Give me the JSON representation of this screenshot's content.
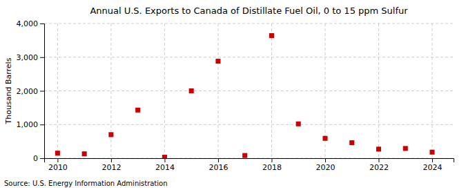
{
  "chart_data": {
    "type": "scatter",
    "title": "Annual U.S. Exports to Canada of Distillate Fuel Oil, 0 to 15 ppm Sulfur",
    "ylabel": "Thousand Barrels",
    "source": "Source: U.S. Energy Information Administration",
    "x": [
      2010,
      2011,
      2012,
      2013,
      2014,
      2015,
      2016,
      2017,
      2018,
      2019,
      2020,
      2021,
      2022,
      2023,
      2024
    ],
    "values": [
      150,
      130,
      700,
      1430,
      30,
      2000,
      2880,
      80,
      3640,
      1020,
      590,
      460,
      270,
      290,
      180
    ],
    "color": "#cc0000",
    "marker": "square",
    "xlim": [
      2009.5,
      2024.8
    ],
    "xticks": [
      2010,
      2012,
      2014,
      2016,
      2018,
      2020,
      2022,
      2024
    ],
    "ylim": [
      0,
      4000
    ],
    "yticks": [
      0,
      {
        "value": 1000,
        "label": "1,000"
      },
      {
        "value": 2000,
        "label": "2,000"
      },
      {
        "value": 3000,
        "label": "3,000"
      },
      {
        "value": 4000,
        "label": "4,000"
      }
    ],
    "grid": true
  }
}
